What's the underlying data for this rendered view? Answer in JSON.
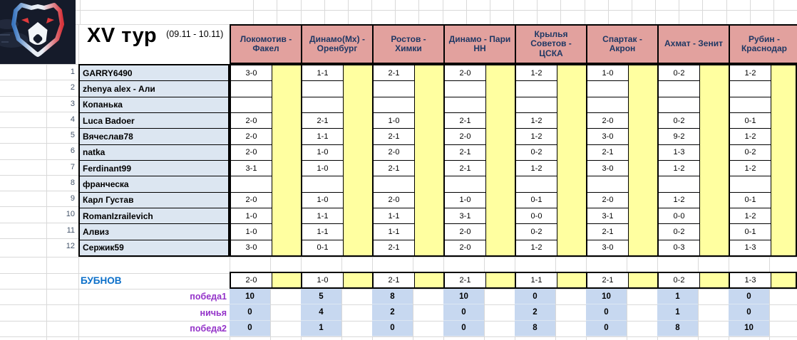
{
  "title": {
    "round": "XV тур",
    "dates": "(09.11 - 10.11)"
  },
  "logo": {
    "icon": "rpl-bear-logo"
  },
  "matches": [
    "Локомотив - Факел",
    "Динамо(Мх) - Оренбург",
    "Ростов - Химки",
    "Динамо - Пари НН",
    "Крылья Советов - ЦСКА",
    "Спартак - Акрон",
    "Ахмат - Зенит",
    "Рубин - Краснодар"
  ],
  "players": [
    {
      "num": "1",
      "name": "GARRY6490",
      "predictions": [
        "3-0",
        "1-1",
        "2-1",
        "2-0",
        "1-2",
        "1-0",
        "0-2",
        "1-2"
      ]
    },
    {
      "num": "2",
      "name": "zhenya alex - Али",
      "predictions": [
        "",
        "",
        "",
        "",
        "",
        "",
        "",
        ""
      ]
    },
    {
      "num": "3",
      "name": "Копанька",
      "predictions": [
        "",
        "",
        "",
        "",
        "",
        "",
        "",
        ""
      ]
    },
    {
      "num": "4",
      "name": "Luca Badoer",
      "predictions": [
        "2-0",
        "2-1",
        "1-0",
        "2-1",
        "1-2",
        "2-0",
        "0-2",
        "0-1"
      ]
    },
    {
      "num": "5",
      "name": "Вячеслав78",
      "predictions": [
        "2-0",
        "1-1",
        "2-1",
        "2-0",
        "1-2",
        "3-0",
        "9-2",
        "1-2"
      ]
    },
    {
      "num": "6",
      "name": "natka",
      "predictions": [
        "2-0",
        "1-0",
        "2-0",
        "2-1",
        "0-2",
        "2-1",
        "1-3",
        "0-2"
      ]
    },
    {
      "num": "7",
      "name": "Ferdinant99",
      "predictions": [
        "3-1",
        "1-0",
        "2-1",
        "2-1",
        "1-2",
        "3-0",
        "1-2",
        "1-2"
      ]
    },
    {
      "num": "8",
      "name": "франческа",
      "predictions": [
        "",
        "",
        "",
        "",
        "",
        "",
        "",
        ""
      ]
    },
    {
      "num": "9",
      "name": "Карл Густав",
      "predictions": [
        "2-0",
        "1-0",
        "2-0",
        "1-0",
        "0-1",
        "2-0",
        "1-2",
        "0-1"
      ]
    },
    {
      "num": "10",
      "name": "RomanIzrailevich",
      "predictions": [
        "1-0",
        "1-1",
        "1-1",
        "3-1",
        "0-0",
        "3-1",
        "0-0",
        "1-2"
      ]
    },
    {
      "num": "11",
      "name": "Алвиз",
      "predictions": [
        "1-0",
        "1-1",
        "1-1",
        "2-0",
        "0-2",
        "2-1",
        "0-2",
        "0-1"
      ]
    },
    {
      "num": "12",
      "name": "Сержик59",
      "predictions": [
        "3-0",
        "0-1",
        "2-1",
        "2-0",
        "1-2",
        "3-0",
        "0-3",
        "1-3"
      ]
    }
  ],
  "bubnov": {
    "name": "БУБНОВ",
    "predictions": [
      "2-0",
      "1-0",
      "2-1",
      "2-1",
      "1-1",
      "2-1",
      "0-2",
      "1-3"
    ]
  },
  "stats": [
    {
      "label": "победа1",
      "values": [
        "10",
        "5",
        "8",
        "10",
        "0",
        "10",
        "1",
        "0"
      ]
    },
    {
      "label": "ничья",
      "values": [
        "0",
        "4",
        "2",
        "0",
        "2",
        "0",
        "1",
        "0"
      ]
    },
    {
      "label": "победа2",
      "values": [
        "0",
        "1",
        "0",
        "0",
        "8",
        "0",
        "8",
        "10"
      ]
    }
  ],
  "colors": {
    "header_bg": "#e2a19e",
    "header_text": "#1f3864",
    "yellow": "#ffffa0",
    "name_bg": "#dce6f1",
    "stat_bg": "#c7d8f0",
    "bubnov_text": "#0b6fc9",
    "stat_label_text": "#9433c9",
    "border": "#000000",
    "gridline": "#d9d9d9",
    "row_number_text": "#44546a",
    "logo_bg": "#151b2a",
    "logo_red": "#e03a3c",
    "logo_blue": "#3a76c0"
  }
}
